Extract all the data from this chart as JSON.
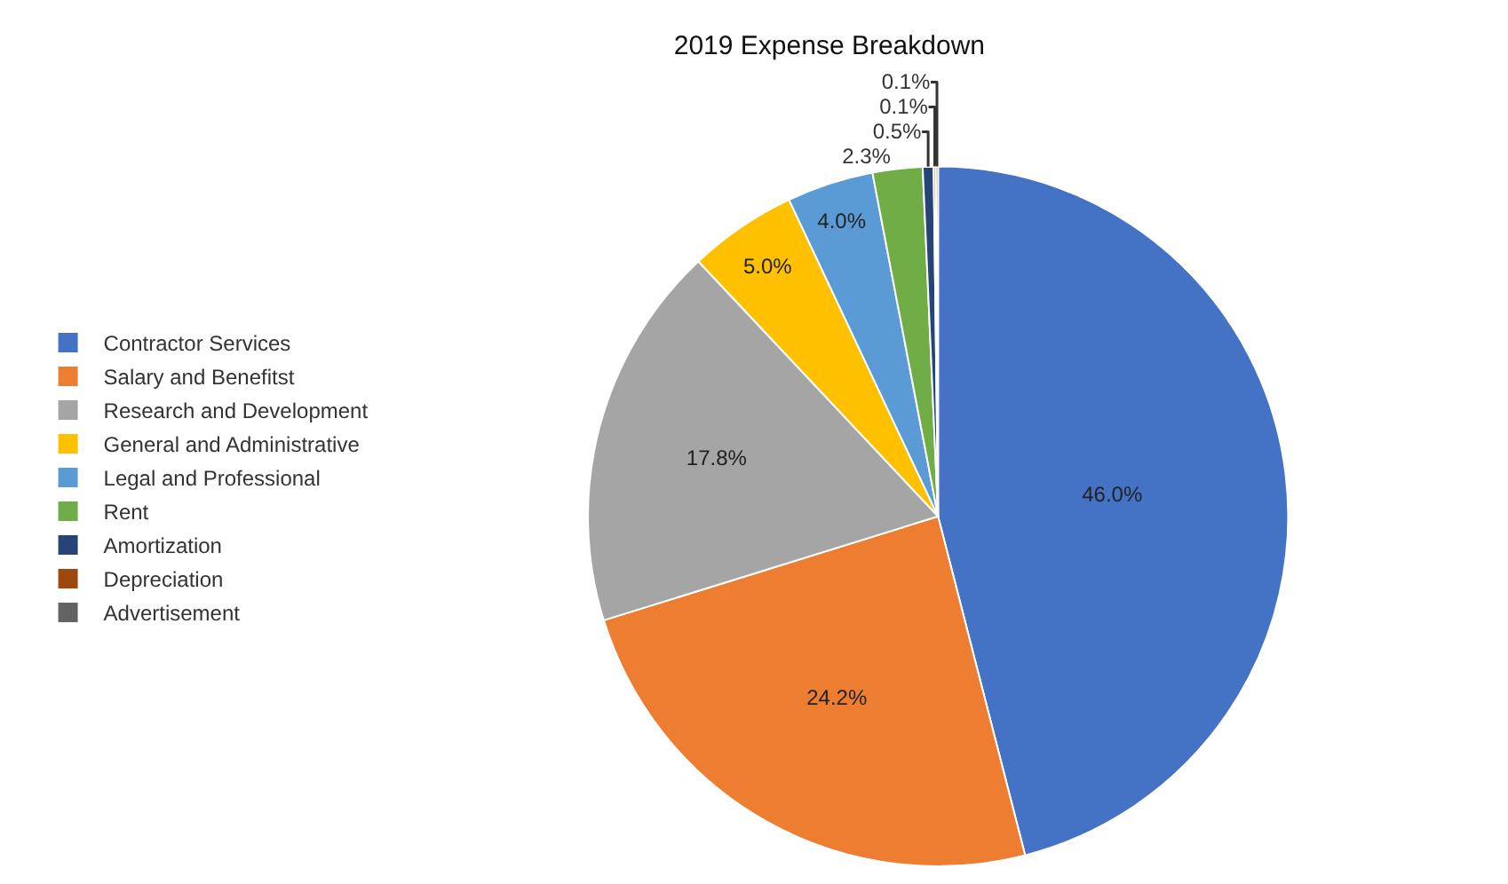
{
  "chart_data": {
    "type": "pie",
    "title": "2019 Expense Breakdown",
    "categories": [
      "Contractor Services",
      "Salary and Benefitst",
      "Research and Development",
      "General and Administrative",
      "Legal and Professional",
      "Rent",
      "Amortization",
      "Depreciation",
      "Advertisement"
    ],
    "values": [
      46.0,
      24.2,
      17.8,
      5.0,
      4.0,
      2.3,
      0.5,
      0.1,
      0.1
    ],
    "value_labels": [
      "46.0%",
      "24.2%",
      "17.8%",
      "5.0%",
      "4.0%",
      "2.3%",
      "0.5%",
      "0.1%",
      "0.1%"
    ],
    "colors": [
      "#4472c4",
      "#ed7d31",
      "#a5a5a5",
      "#ffc000",
      "#5b9bd5",
      "#70ad47",
      "#264478",
      "#9e480e",
      "#636363"
    ],
    "legend": "left"
  }
}
